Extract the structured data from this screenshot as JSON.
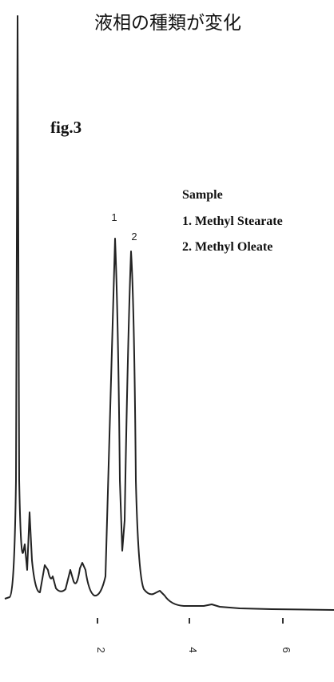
{
  "title": "液相の種類が変化",
  "figure_label": "fig.3",
  "legend": {
    "title": "Sample",
    "items": [
      "1. Methyl Stearate",
      "2. Methyl Oleate"
    ]
  },
  "peak_labels": [
    "1",
    "2"
  ],
  "x_tick_labels": [
    "2",
    "4",
    "6"
  ]
}
